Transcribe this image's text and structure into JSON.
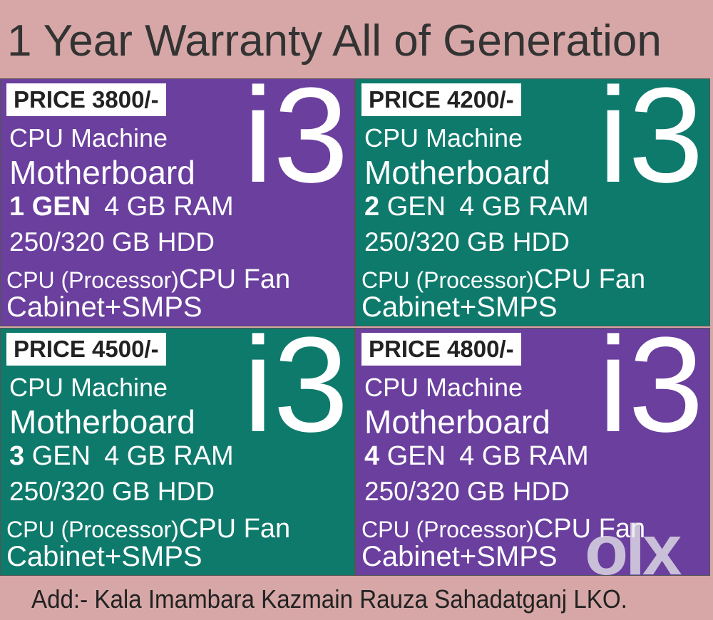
{
  "header": {
    "title": "1 Year Warranty All of Generation"
  },
  "cards": [
    {
      "price": "PRICE 3800/-",
      "model": "i3",
      "line1": "CPU Machine",
      "line2": "Motherboard",
      "gen_num": "1",
      "gen_word": "GEN",
      "ram": "4 GB RAM",
      "hdd": "250/320 GB HDD",
      "processor": "CPU (Processor)",
      "fan": "CPU Fan",
      "cabinet": "Cabinet+SMPS"
    },
    {
      "price": "PRICE 4200/-",
      "model": "i3",
      "line1": "CPU Machine",
      "line2": "Motherboard",
      "gen_num": "2",
      "gen_word": "GEN",
      "ram": "4 GB RAM",
      "hdd": "250/320 GB HDD",
      "processor": "CPU (Processor)",
      "fan": "CPU Fan",
      "cabinet": "Cabinet+SMPS"
    },
    {
      "price": "PRICE 4500/-",
      "model": "i3",
      "line1": "CPU Machine",
      "line2": "Motherboard",
      "gen_num": "3",
      "gen_word": "GEN",
      "ram": "4 GB RAM",
      "hdd": "250/320 GB HDD",
      "processor": "CPU (Processor)",
      "fan": "CPU Fan",
      "cabinet": "Cabinet+SMPS"
    },
    {
      "price": "PRICE 4800/-",
      "model": "i3",
      "line1": "CPU Machine",
      "line2": "Motherboard",
      "gen_num": "4",
      "gen_word": "GEN",
      "ram": "4 GB RAM",
      "hdd": "250/320 GB HDD",
      "processor": "CPU (Processor)",
      "fan": "CPU Fan",
      "cabinet": "Cabinet+SMPS"
    }
  ],
  "footer": {
    "address": "Add:- Kala Imambara Kazmain Rauza Sahadatganj LKO."
  },
  "watermark": "olx"
}
